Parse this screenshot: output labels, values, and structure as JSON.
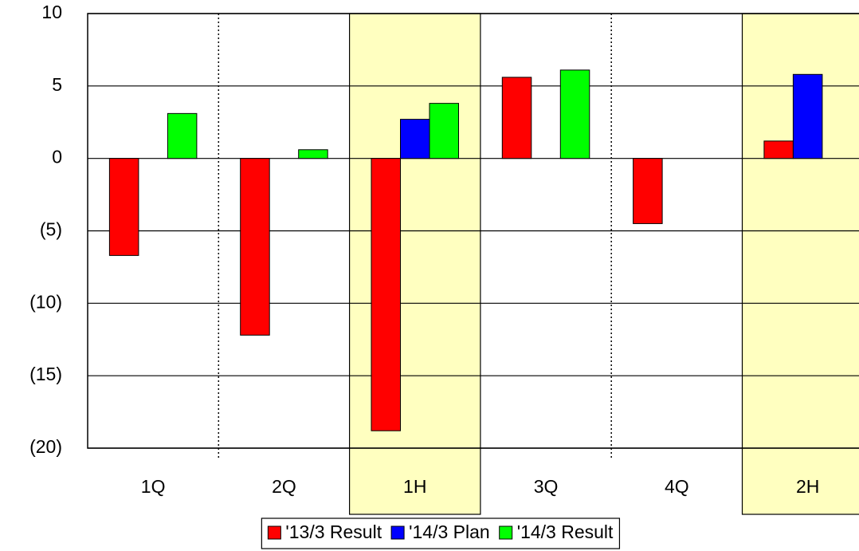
{
  "chart_data": {
    "type": "bar",
    "categories": [
      "1Q",
      "2Q",
      "1H",
      "3Q",
      "4Q",
      "2H"
    ],
    "highlight_categories": [
      2,
      5
    ],
    "highlight_color": "#ffffc0",
    "series": [
      {
        "name": "'13/3 Result",
        "color": "#ff0000",
        "values": [
          -6.7,
          -12.2,
          -18.8,
          5.6,
          -4.5,
          1.2
        ]
      },
      {
        "name": "'14/3 Plan",
        "color": "#0000ff",
        "values": [
          null,
          null,
          2.7,
          null,
          null,
          5.8
        ]
      },
      {
        "name": "'14/3 Result",
        "color": "#00ff00",
        "values": [
          3.1,
          0.6,
          3.8,
          6.1,
          null,
          null
        ]
      }
    ],
    "ylim": [
      -20,
      10
    ],
    "yticks": [
      {
        "value": -20,
        "label": "(20)"
      },
      {
        "value": -15,
        "label": "(15)"
      },
      {
        "value": -10,
        "label": "(10)"
      },
      {
        "value": -5,
        "label": "(5)"
      },
      0,
      5,
      10
    ],
    "grid": true,
    "legend": "bottom"
  }
}
